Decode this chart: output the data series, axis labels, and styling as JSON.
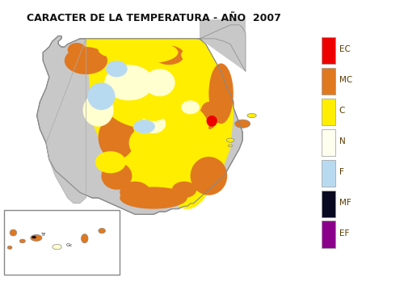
{
  "title": "CARACTER DE LA TEMPERATURA - AÑO  2007",
  "title_fontsize": 9,
  "title_fontweight": "bold",
  "title_color": "#111111",
  "background_color": "#ffffff",
  "fig_width": 5.0,
  "fig_height": 3.54,
  "legend_labels": [
    "EC",
    "MC",
    "C",
    "N",
    "F",
    "MF",
    "EF"
  ],
  "legend_colors": [
    "#ee0000",
    "#e07820",
    "#ffee00",
    "#fffff0",
    "#b8daf0",
    "#080820",
    "#8b008b"
  ],
  "gray_land": "#c8c8c8",
  "outline_color": "#888888",
  "yellow_base": "#ffee00",
  "orange_blob": "#e07820",
  "cream_blob": "#fffff0",
  "blue_blob": "#b8daf0",
  "red_blob": "#ee0000"
}
